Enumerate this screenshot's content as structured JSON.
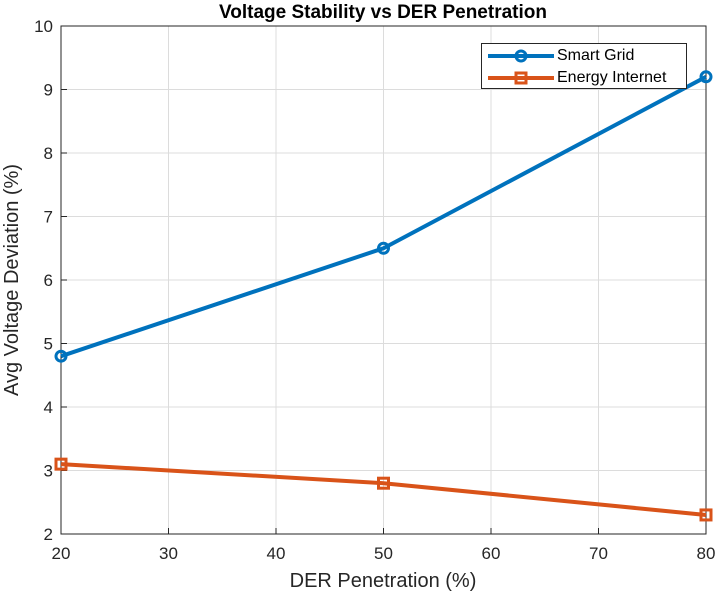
{
  "chart_data": {
    "type": "line",
    "title": "Voltage Stability vs DER Penetration",
    "xlabel": "DER Penetration (%)",
    "ylabel": "Avg Voltage Deviation (%)",
    "xlim": [
      20,
      80
    ],
    "ylim": [
      2,
      10
    ],
    "xticks": [
      20,
      30,
      40,
      50,
      60,
      70,
      80
    ],
    "yticks": [
      2,
      3,
      4,
      5,
      6,
      7,
      8,
      9,
      10
    ],
    "grid": true,
    "legend_position": "top-right",
    "x": [
      20,
      50,
      80
    ],
    "series": [
      {
        "name": "Smart Grid",
        "values": [
          4.8,
          6.5,
          9.2
        ],
        "color": "#0072BD",
        "marker": "circle"
      },
      {
        "name": "Energy Internet",
        "values": [
          3.1,
          2.8,
          2.3
        ],
        "color": "#D95319",
        "marker": "square"
      }
    ]
  }
}
